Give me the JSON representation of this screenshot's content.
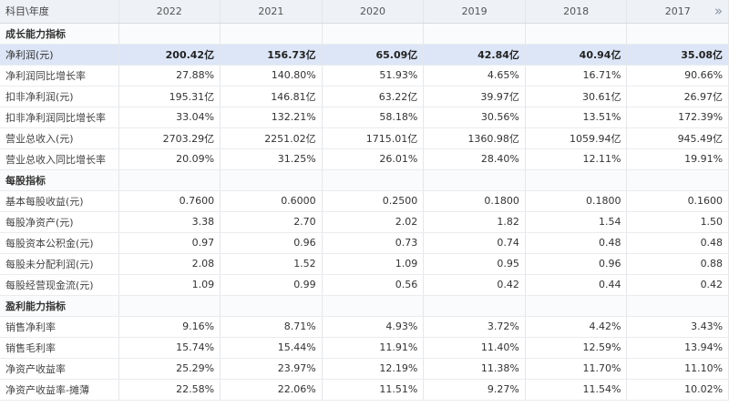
{
  "header": {
    "first_col": "科目\\年度",
    "years": [
      "2022",
      "2021",
      "2020",
      "2019",
      "2018",
      "2017"
    ],
    "more_icon": "»"
  },
  "rows": [
    {
      "type": "section",
      "label": "成长能力指标"
    },
    {
      "type": "highlight",
      "label": "净利润(元)",
      "values": [
        "200.42亿",
        "156.73亿",
        "65.09亿",
        "42.84亿",
        "40.94亿",
        "35.08亿"
      ]
    },
    {
      "type": "row",
      "label": "净利润同比增长率",
      "values": [
        "27.88%",
        "140.80%",
        "51.93%",
        "4.65%",
        "16.71%",
        "90.66%"
      ]
    },
    {
      "type": "row",
      "label": "扣非净利润(元)",
      "values": [
        "195.31亿",
        "146.81亿",
        "63.22亿",
        "39.97亿",
        "30.61亿",
        "26.97亿"
      ]
    },
    {
      "type": "row",
      "label": "扣非净利润同比增长率",
      "values": [
        "33.04%",
        "132.21%",
        "58.18%",
        "30.56%",
        "13.51%",
        "172.39%"
      ]
    },
    {
      "type": "row",
      "label": "营业总收入(元)",
      "values": [
        "2703.29亿",
        "2251.02亿",
        "1715.01亿",
        "1360.98亿",
        "1059.94亿",
        "945.49亿"
      ]
    },
    {
      "type": "row",
      "label": "营业总收入同比增长率",
      "values": [
        "20.09%",
        "31.25%",
        "26.01%",
        "28.40%",
        "12.11%",
        "19.91%"
      ]
    },
    {
      "type": "section",
      "label": "每股指标"
    },
    {
      "type": "row",
      "label": "基本每股收益(元)",
      "values": [
        "0.7600",
        "0.6000",
        "0.2500",
        "0.1800",
        "0.1800",
        "0.1600"
      ]
    },
    {
      "type": "row",
      "label": "每股净资产(元)",
      "values": [
        "3.38",
        "2.70",
        "2.02",
        "1.82",
        "1.54",
        "1.50"
      ]
    },
    {
      "type": "row",
      "label": "每股资本公积金(元)",
      "values": [
        "0.97",
        "0.96",
        "0.73",
        "0.74",
        "0.48",
        "0.48"
      ]
    },
    {
      "type": "row",
      "label": "每股未分配利润(元)",
      "values": [
        "2.08",
        "1.52",
        "1.09",
        "0.95",
        "0.96",
        "0.88"
      ]
    },
    {
      "type": "row",
      "label": "每股经营现金流(元)",
      "values": [
        "1.09",
        "0.99",
        "0.56",
        "0.42",
        "0.44",
        "0.42"
      ]
    },
    {
      "type": "section",
      "label": "盈利能力指标"
    },
    {
      "type": "row",
      "label": "销售净利率",
      "values": [
        "9.16%",
        "8.71%",
        "4.93%",
        "3.72%",
        "4.42%",
        "3.43%"
      ]
    },
    {
      "type": "row",
      "label": "销售毛利率",
      "values": [
        "15.74%",
        "15.44%",
        "11.91%",
        "11.40%",
        "12.59%",
        "13.94%"
      ]
    },
    {
      "type": "row",
      "label": "净资产收益率",
      "values": [
        "25.29%",
        "23.97%",
        "12.19%",
        "11.38%",
        "11.70%",
        "11.10%"
      ]
    },
    {
      "type": "row",
      "label": "净资产收益率-摊薄",
      "values": [
        "22.58%",
        "22.06%",
        "11.51%",
        "9.27%",
        "11.54%",
        "10.02%"
      ]
    }
  ]
}
